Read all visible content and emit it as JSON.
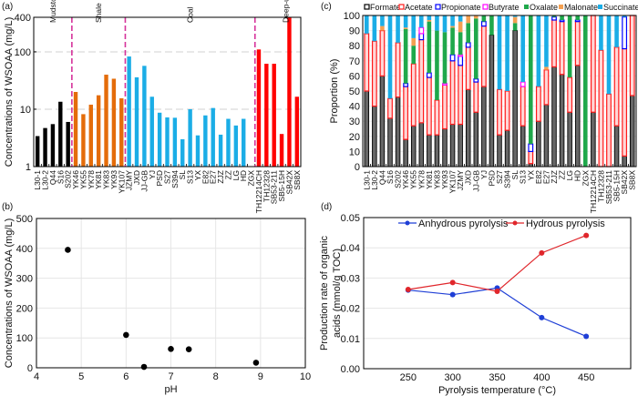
{
  "chart_data": [
    {
      "panel_label": "(a)",
      "type": "bar",
      "ylabel": "Concentrations of WSOAA (mg/L)",
      "yscale": "log",
      "ylim": [
        1,
        400
      ],
      "yticks": [
        "1",
        "10",
        "100",
        "400"
      ],
      "grid": "horizontal dashed at 10 and 100",
      "groups": [
        {
          "name": "Mudstone",
          "color": "#000000",
          "categories": [
            "L30-1",
            "L30-2",
            "Q44",
            "S16",
            "S202"
          ],
          "values": [
            3.4,
            4.7,
            5.5,
            13.5,
            6.0
          ]
        },
        {
          "name": "Shale",
          "color": "#E46C0A",
          "categories": [
            "YK46",
            "YK55",
            "YK78",
            "YK81",
            "YK83",
            "YK93",
            "YK107"
          ],
          "values": [
            20,
            8.2,
            12,
            17.5,
            40,
            34,
            15.5
          ]
        },
        {
          "name": "Coal",
          "color": "#1BADE6",
          "categories": [
            "JZMY",
            "JXD",
            "JJ-GB",
            "YJ",
            "PSD",
            "S27",
            "S394",
            "SL",
            "S13",
            "YX",
            "E82",
            "E27",
            "ZJZ",
            "ZZ",
            "LG",
            "HD",
            "ZGX"
          ],
          "values": [
            83,
            36,
            57,
            16.5,
            8.7,
            7.2,
            7.1,
            3.0,
            10,
            3.5,
            7.8,
            10.5,
            3.6,
            6.8,
            5.2,
            6.8,
            1.0
          ]
        },
        {
          "name": "Deep-ultradeep subsurface water",
          "color": "#FF0000",
          "categories": [
            "TH12214CH",
            "TH12328",
            "SB53-211",
            "SB5-15H",
            "SB42X",
            "SB8X"
          ],
          "values": [
            110,
            62,
            62,
            3.7,
            400,
            16.5
          ]
        }
      ],
      "separator_color": "#D6339B"
    },
    {
      "panel_label": "(b)",
      "type": "scatter",
      "xlabel": "pH",
      "ylabel": "Concentrations of WSOAA (mg/L)",
      "xlim": [
        4,
        10
      ],
      "ylim": [
        0,
        500
      ],
      "xticks": [
        "4",
        "5",
        "6",
        "7",
        "8",
        "9",
        "10"
      ],
      "yticks": [
        "0",
        "100",
        "200",
        "300",
        "400",
        "500"
      ],
      "grid": true,
      "points": [
        [
          4.7,
          395
        ],
        [
          6.0,
          110
        ],
        [
          6.4,
          3
        ],
        [
          7.0,
          63
        ],
        [
          7.4,
          62
        ],
        [
          8.9,
          17
        ]
      ]
    },
    {
      "panel_label": "(c)",
      "type": "bar",
      "stacked": true,
      "ylabel": "Proportion (%)",
      "ylim": [
        0,
        100
      ],
      "yticks": [
        "0",
        "10",
        "20",
        "30",
        "40",
        "50",
        "60",
        "70",
        "80",
        "90",
        "100"
      ],
      "legend_position": "top",
      "categories": [
        "L30-1",
        "L30-2",
        "Q44",
        "S16",
        "S202",
        "YK46",
        "YK55",
        "YK78",
        "YK81",
        "YK83",
        "YK93",
        "YK107",
        "JZMY",
        "JXD",
        "JJ-GB",
        "YJ",
        "PSD",
        "S27",
        "S394",
        "SL",
        "S13",
        "YX",
        "E82",
        "E27",
        "ZJZ",
        "ZZ",
        "LG",
        "HD",
        "ZGX",
        "TH12214CH",
        "TH12328",
        "SB53-211",
        "SB5-15H",
        "SB42X",
        "SB8X"
      ],
      "series": [
        {
          "name": "Formate",
          "color": "#222222",
          "values": [
            50,
            40,
            60,
            32,
            46,
            18,
            27,
            29,
            21,
            21,
            25,
            28,
            28,
            51,
            36,
            53,
            87,
            21,
            24,
            90,
            27,
            2,
            30,
            41,
            66,
            61,
            36,
            67,
            0,
            36,
            0,
            0,
            27,
            7,
            47
          ]
        },
        {
          "name": "Acetate",
          "color": "#FF1A1A",
          "values": [
            38,
            43,
            30,
            13,
            36,
            35,
            41,
            55,
            38,
            23,
            29,
            42,
            39,
            28,
            20,
            40,
            0,
            30,
            26,
            0,
            26,
            8,
            23,
            23,
            31,
            35,
            23,
            29,
            0,
            64,
            77,
            48,
            52,
            71,
            53
          ]
        },
        {
          "name": "Propionate",
          "color": "#0000FF",
          "values": [
            0,
            0,
            0,
            0,
            0,
            2,
            0,
            4,
            3,
            0,
            0,
            4,
            6,
            3,
            2,
            3,
            0,
            0,
            0,
            0,
            0,
            5,
            0,
            0,
            2,
            1,
            0,
            1,
            0,
            0,
            0,
            0,
            0,
            21,
            0
          ]
        },
        {
          "name": "Butyrate",
          "color": "#FF00FF",
          "values": [
            0,
            0,
            0,
            0,
            0,
            0,
            0,
            4,
            0,
            0,
            1,
            0,
            1,
            0,
            0,
            0,
            0,
            0,
            0,
            0,
            3,
            0,
            0,
            0,
            0,
            0,
            0,
            0,
            0,
            0,
            0,
            0,
            0,
            0,
            0
          ]
        },
        {
          "name": "Oxalate",
          "color": "#1FA84B",
          "values": [
            0,
            0,
            0,
            0,
            0,
            36,
            12,
            0,
            34,
            46,
            34,
            18,
            15,
            13,
            40,
            4,
            13,
            0,
            0,
            5,
            0,
            85,
            0,
            0,
            1,
            3,
            41,
            3,
            100,
            0,
            0,
            0,
            0,
            0,
            0
          ]
        },
        {
          "name": "Malonate",
          "color": "#F4A051",
          "values": [
            0,
            0,
            3,
            0,
            0,
            1,
            5,
            0,
            1,
            0,
            0,
            1,
            7,
            5,
            2,
            0,
            0,
            0,
            0,
            4,
            0,
            0,
            0,
            2,
            0,
            0,
            0,
            0,
            0,
            0,
            0,
            0,
            0,
            0,
            0
          ]
        },
        {
          "name": "Succinate",
          "color": "#1BADE6",
          "values": [
            12,
            17,
            7,
            55,
            18,
            8,
            15,
            8,
            3,
            10,
            11,
            7,
            4,
            0,
            0,
            0,
            0,
            49,
            50,
            1,
            44,
            0,
            47,
            34,
            0,
            0,
            0,
            0,
            0,
            0,
            23,
            52,
            21,
            1,
            0
          ]
        }
      ]
    },
    {
      "panel_label": "(d)",
      "type": "line",
      "xlabel": "Pyrolysis temperature (°C)",
      "ylabel": "Production rate of organic acids (mmol/g TOC)",
      "x": [
        250,
        300,
        350,
        400,
        450
      ],
      "xlim": [
        200,
        500
      ],
      "ylim": [
        0,
        0.05
      ],
      "xticks": [
        "250",
        "300",
        "350",
        "400",
        "450"
      ],
      "yticks": [
        "0.00",
        "0.01",
        "0.02",
        "0.03",
        "0.04",
        "0.05"
      ],
      "legend_position": "top",
      "grid": "horizontal",
      "series": [
        {
          "name": "Anhydrous pyrolysis",
          "color": "#1F3FD6",
          "values": [
            0.026,
            0.0245,
            0.0267,
            0.0169,
            0.0107
          ]
        },
        {
          "name": "Hydrous pyrolysis",
          "color": "#E0262B",
          "values": [
            0.0262,
            0.0285,
            0.0256,
            0.0383,
            0.0441
          ]
        }
      ]
    }
  ]
}
